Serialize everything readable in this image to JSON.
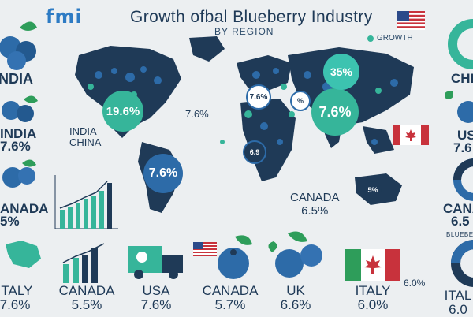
{
  "header": {
    "logo_text": "fmi",
    "title": "Growth ofbal Blueberry Industry",
    "subtitle": "BY REGION",
    "legend_label": "GROWTH"
  },
  "left_column": {
    "label_1": "NDIA",
    "label_2": "INDIA",
    "label_3": "7.6%",
    "label_4": "ANADA",
    "label_5": "5%"
  },
  "right_column": {
    "label_1": "CHI",
    "label_2": "US",
    "label_3": "7.6",
    "label_4": "CANA",
    "label_5": "6.5",
    "label_6": "BLUEBERR",
    "label_7": "ITA",
    "label_8": "6.0"
  },
  "map": {
    "bubble_na": "19.6%",
    "bubble_sa": "7.6%",
    "bubble_eu": "7.6%",
    "bubble_asia": "35%",
    "small_eu": "7.6%",
    "small_me": "%",
    "small_af": "6.9",
    "small_au": "5%",
    "label_76_west": "7.6%",
    "india_label": "INDIA",
    "china_label": "CHINA",
    "canada_label": "CANADA",
    "canada_value": "6.5%",
    "value_60": "6.0%"
  },
  "bottom": {
    "items": [
      {
        "name": "ITALY",
        "value": "7.6%"
      },
      {
        "name": "CANADA",
        "value": "5.5%"
      },
      {
        "name": "USA",
        "value": "7.6%"
      },
      {
        "name": "CANADA",
        "value": "5.7%"
      },
      {
        "name": "UK",
        "value": "6.6%"
      },
      {
        "name": "ITALY",
        "value": "6.0%"
      },
      {
        "name": "ITAL",
        "value": "6.0"
      }
    ]
  },
  "colors": {
    "navy": "#1f3a57",
    "blue": "#2d6ba8",
    "teal": "#36b59a",
    "green": "#2e9d5a",
    "background": "#eceff1"
  }
}
